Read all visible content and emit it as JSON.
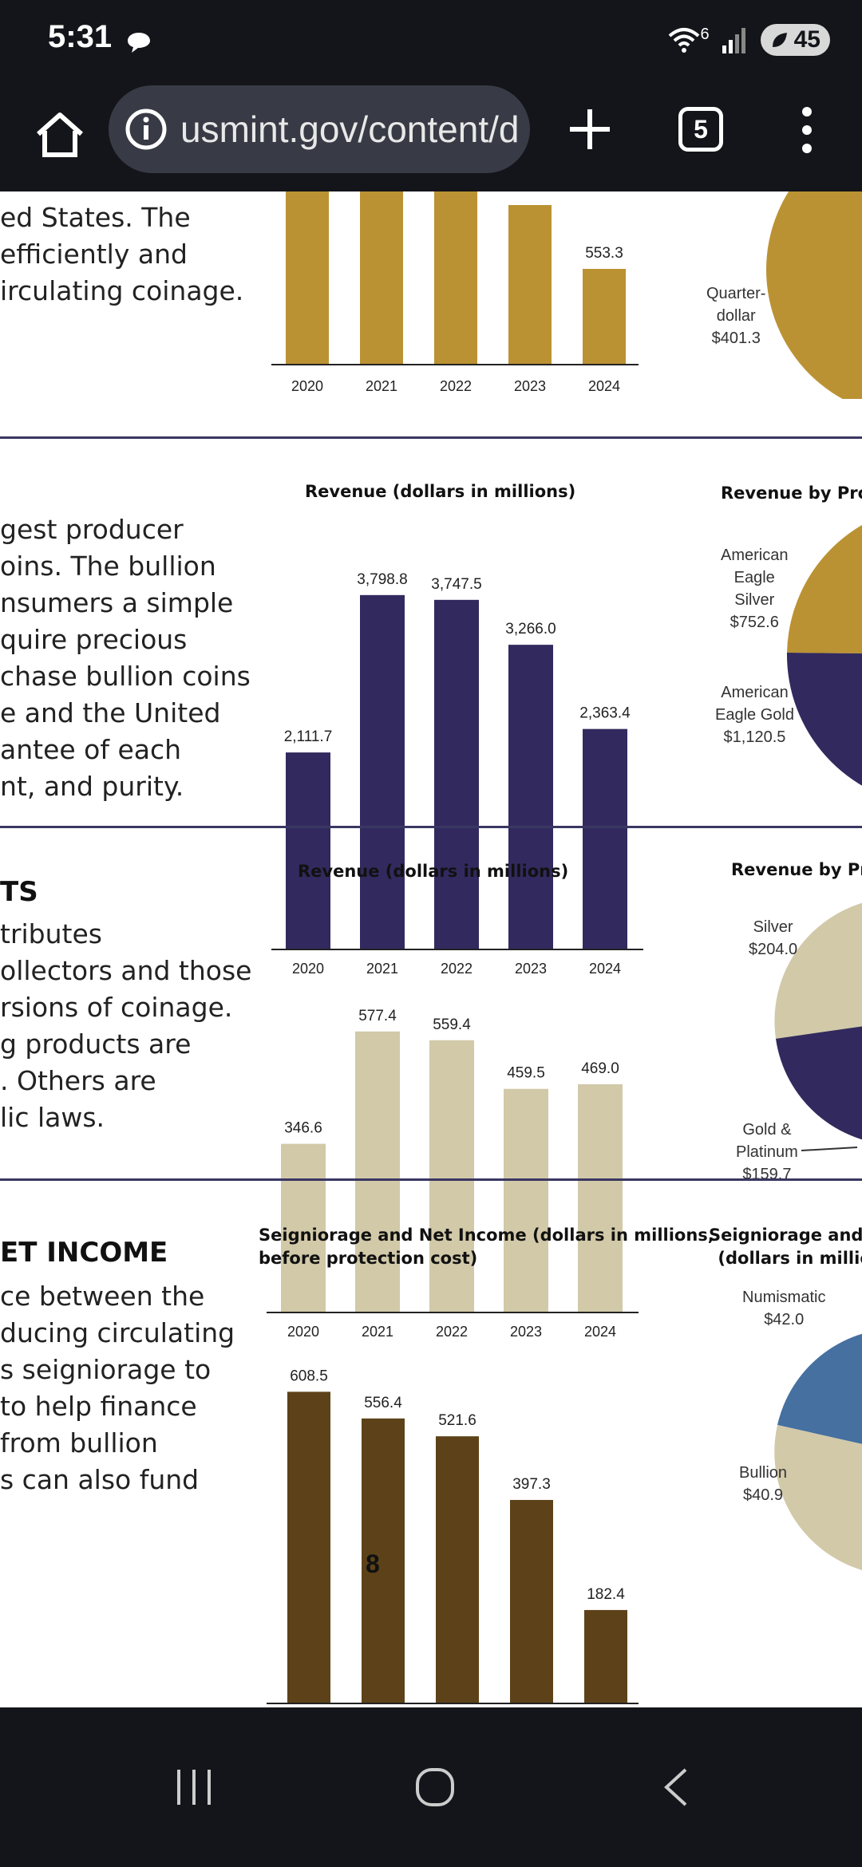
{
  "status": {
    "time": "5:31",
    "signal": "6",
    "battery": "45"
  },
  "browser": {
    "url": "usmint.gov/content/d",
    "tab_count": "5"
  },
  "section1": {
    "lines": [
      "ed States. The",
      " efficiently and",
      "irculating coinage."
    ],
    "pie_labels": [
      {
        "lines": [
          "Quarter-",
          "dollar",
          "$401.3"
        ]
      }
    ]
  },
  "section2": {
    "lines": [
      "gest producer",
      "oins. The bullion",
      "nsumers a simple",
      "quire precious",
      "chase bullion coins",
      "e and the United",
      "antee of each",
      "nt, and purity."
    ],
    "pie_title": "Revenue by Prog",
    "pie_labels": [
      {
        "lines": [
          "American",
          "Eagle",
          "Silver",
          "$752.6"
        ]
      },
      {
        "lines": [
          "American",
          "Eagle Gold",
          "$1,120.5"
        ]
      }
    ]
  },
  "section3": {
    "heading": "TS",
    "lines": [
      "tributes",
      "ollectors and those",
      "rsions of coinage.",
      "g products are",
      ". Others are",
      "lic laws."
    ],
    "pie_title": "Revenue by Prog",
    "pie_labels": [
      {
        "lines": [
          "Silver",
          "$204.0"
        ]
      },
      {
        "lines": [
          "Gold &",
          "Platinum",
          "$159.7"
        ]
      }
    ]
  },
  "section4": {
    "heading": "ET INCOME",
    "lines": [
      "ce between the",
      "ducing circulating",
      "s seigniorage to",
      " to help finance",
      " from bullion",
      "s can also fund"
    ],
    "pie_title_lines": [
      "Seigniorage and Net",
      "(dollars in millions"
    ],
    "pie_labels": [
      {
        "lines": [
          "Numismatic",
          "$42.0"
        ]
      },
      {
        "lines": [
          "Bullion",
          "$40.9"
        ]
      }
    ]
  },
  "page_number": "8",
  "colors": {
    "gold": "#bb9233",
    "navy": "#322a5e",
    "beige": "#d1c9a8",
    "brown": "#5d4219",
    "blue": "#4570a0"
  },
  "chart_data": [
    {
      "type": "bar",
      "title": "",
      "categories": [
        "2020",
        "2021",
        "2022",
        "2023",
        "2024"
      ],
      "values": [
        null,
        null,
        null,
        null,
        553.3
      ],
      "data_labels": [
        "",
        "",
        "",
        "",
        "553.3"
      ],
      "color": "#bb9233"
    },
    {
      "type": "bar",
      "title": "Revenue (dollars in millions)",
      "categories": [
        "2020",
        "2021",
        "2022",
        "2023",
        "2024"
      ],
      "values": [
        2111.7,
        3798.8,
        3747.5,
        3266.0,
        2363.4
      ],
      "data_labels": [
        "2,111.7",
        "3,798.8",
        "3,747.5",
        "3,266.0",
        "2,363.4"
      ],
      "ylim": [
        0,
        3900
      ],
      "color": "#322a5e"
    },
    {
      "type": "bar",
      "title": "Revenue (dollars in millions)",
      "categories": [
        "2020",
        "2021",
        "2022",
        "2023",
        "2024"
      ],
      "values": [
        346.6,
        577.4,
        559.4,
        459.5,
        469.0
      ],
      "data_labels": [
        "346.6",
        "577.4",
        "559.4",
        "459.5",
        "469.0"
      ],
      "ylim": [
        0,
        600
      ],
      "color": "#d1c9a8"
    },
    {
      "type": "bar",
      "title": "Seigniorage and Net Income (dollars in millions, before protection cost)",
      "title_lines": [
        "Seigniorage and Net Income (dollars in millions,",
        "before protection cost)"
      ],
      "categories": [
        "2020",
        "2021",
        "2022",
        "2023",
        "2024"
      ],
      "values": [
        608.5,
        556.4,
        521.6,
        397.3,
        182.4
      ],
      "data_labels": [
        "608.5",
        "556.4",
        "521.6",
        "397.3",
        "182.4"
      ],
      "ylim": [
        0,
        620
      ],
      "color": "#5d4219"
    }
  ]
}
